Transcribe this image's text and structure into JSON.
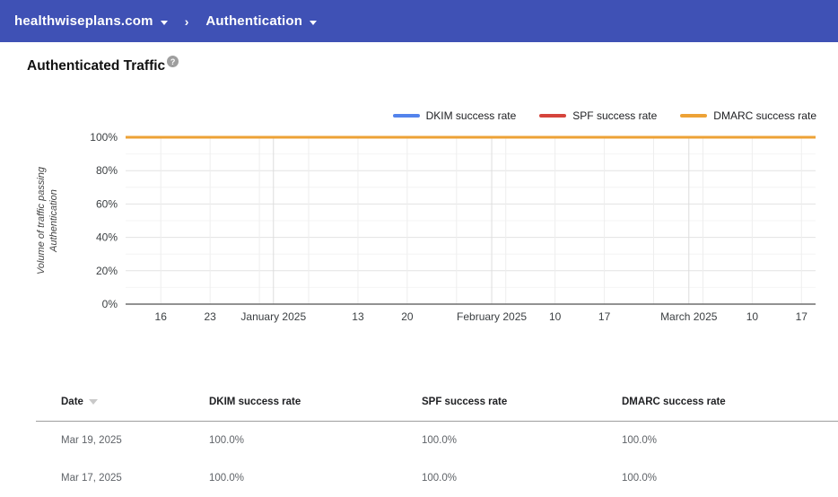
{
  "appbar": {
    "domain": "healthwiseplans.com",
    "separator": "›",
    "section": "Authentication"
  },
  "page": {
    "title": "Authenticated Traffic",
    "help_label": "?"
  },
  "chart_data": {
    "type": "line",
    "title": "Authenticated Traffic",
    "ylabel": "Volume of traffic passing Authentication",
    "ylabel_lines": [
      "Volume of traffic passing",
      "Authentication"
    ],
    "ylim": [
      0,
      100
    ],
    "grid": true,
    "legend_position": "top-right",
    "y_ticks": [
      {
        "percent": 0,
        "label": "0%"
      },
      {
        "percent": 20,
        "label": "20%"
      },
      {
        "percent": 40,
        "label": "40%"
      },
      {
        "percent": 60,
        "label": "60%"
      },
      {
        "percent": 80,
        "label": "80%"
      },
      {
        "percent": 100,
        "label": "100%"
      }
    ],
    "x_axis": {
      "range_days": 98,
      "ticks": [
        {
          "day": 5,
          "label": "16"
        },
        {
          "day": 12,
          "label": "23"
        },
        {
          "day": 21,
          "label": "January 2025"
        },
        {
          "day": 33,
          "label": "13"
        },
        {
          "day": 40,
          "label": "20"
        },
        {
          "day": 52,
          "label": "February 2025"
        },
        {
          "day": 61,
          "label": "10"
        },
        {
          "day": 68,
          "label": "17"
        },
        {
          "day": 80,
          "label": "March 2025"
        },
        {
          "day": 89,
          "label": "10"
        },
        {
          "day": 96,
          "label": "17"
        }
      ],
      "week_gridline_days": [
        5,
        12,
        19,
        26,
        33,
        40,
        47,
        54,
        61,
        68,
        75,
        82,
        89,
        96
      ],
      "month_gridline_days": [
        21,
        52,
        80
      ]
    },
    "series": [
      {
        "name": "DKIM success rate",
        "color": "#5383ec",
        "value_percent": 100
      },
      {
        "name": "SPF success rate",
        "color": "#d5443c",
        "value_percent": 100
      },
      {
        "name": "DMARC success rate",
        "color": "#eda236",
        "value_percent": 100
      }
    ]
  },
  "table": {
    "columns": [
      {
        "label": "Date"
      },
      {
        "label": "DKIM success rate"
      },
      {
        "label": "SPF success rate"
      },
      {
        "label": "DMARC success rate"
      }
    ],
    "rows": [
      {
        "date": "Mar 19, 2025",
        "dkim": "100.0%",
        "spf": "100.0%",
        "dmarc": "100.0%"
      },
      {
        "date": "Mar 17, 2025",
        "dkim": "100.0%",
        "spf": "100.0%",
        "dmarc": "100.0%"
      }
    ]
  }
}
